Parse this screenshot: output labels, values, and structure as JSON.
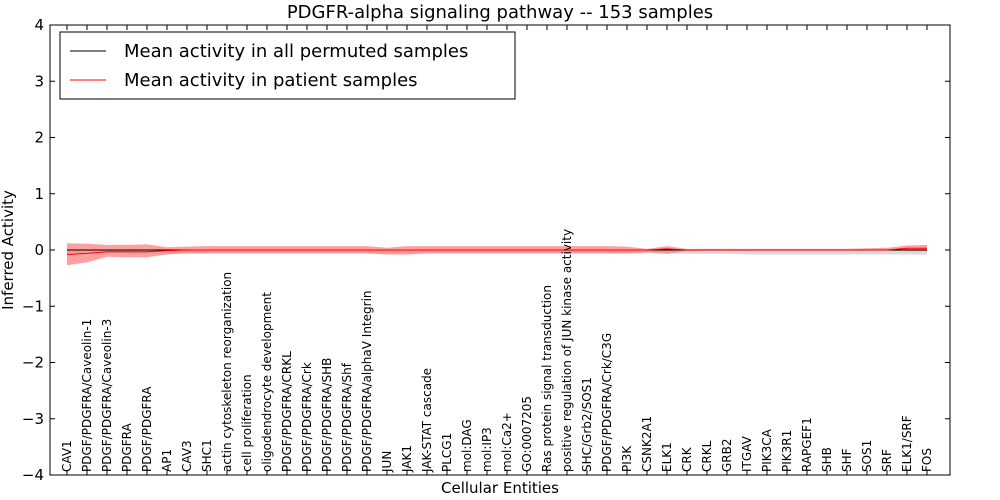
{
  "chart_data": {
    "type": "line",
    "title": "PDGFR-alpha signaling pathway -- 153 samples",
    "xlabel": "Cellular Entities",
    "ylabel": "Inferred Activity",
    "ylim": [
      -4,
      4
    ],
    "yticks": [
      -4,
      -3,
      -2,
      -1,
      0,
      1,
      2,
      3,
      4
    ],
    "ytick_labels": [
      "−4",
      "−3",
      "−2",
      "−1",
      "0",
      "1",
      "2",
      "3",
      "4"
    ],
    "grid": false,
    "legend_position": "top-left",
    "categories": [
      "CAV1",
      "PDGF/PDGFRA/Caveolin-1",
      "PDGF/PDGFRA/Caveolin-3",
      "PDGFRA",
      "PDGF/PDGFRA",
      "AP1",
      "CAV3",
      "SHC1",
      "actin cytoskeleton reorganization",
      "cell proliferation",
      "oligodendrocyte development",
      "PDGF/PDGFRA/CRKL",
      "PDGF/PDGFRA/Crk",
      "PDGF/PDGFRA/SHB",
      "PDGF/PDGFRA/Shf",
      "PDGF/PDGFRA/alphaV Integrin",
      "JUN",
      "JAK1",
      "JAK-STAT cascade",
      "PLCG1",
      "mol:DAG",
      "mol:IP3",
      "mol:Ca2+",
      "GO:0007205",
      "Ras protein signal transduction",
      "positive regulation of JUN kinase activity",
      "SHC/Grb2/SOS1",
      "PDGF/PDGFRA/Crk/C3G",
      "PI3K",
      "CSNK2A1",
      "ELK1",
      "CRK",
      "CRKL",
      "GRB2",
      "ITGAV",
      "PIK3CA",
      "PIK3R1",
      "RAPGEF1",
      "SHB",
      "SHF",
      "SOS1",
      "SRF",
      "ELK1/SRF",
      "FOS"
    ],
    "series": [
      {
        "name": "Mean activity in all permuted samples",
        "color": "#000000",
        "values": [
          0,
          0,
          0,
          0,
          0,
          0,
          0,
          0,
          0,
          0,
          0,
          0,
          0,
          0,
          0,
          0,
          0,
          0,
          0,
          0,
          0,
          0,
          0,
          0,
          0,
          0,
          0,
          0,
          0,
          0,
          0,
          0,
          0,
          0,
          0,
          0,
          0,
          0,
          0,
          0,
          0,
          0,
          0,
          0
        ],
        "band_upper": [
          0,
          0,
          0,
          0,
          0,
          0,
          0,
          0,
          0,
          0,
          0,
          0,
          0,
          0,
          0,
          0,
          0,
          0,
          0,
          0,
          0,
          0,
          0,
          0,
          0,
          0,
          0,
          0,
          0,
          0,
          0,
          0,
          0.02,
          0.02,
          0.02,
          0.02,
          0.02,
          0.02,
          0.02,
          0.02,
          0.02,
          0.02,
          0.02,
          0.02
        ],
        "band_lower": [
          -0.06,
          -0.06,
          -0.06,
          -0.06,
          -0.07,
          -0.07,
          -0.06,
          -0.06,
          -0.06,
          -0.06,
          -0.06,
          -0.06,
          -0.06,
          -0.06,
          -0.06,
          -0.06,
          -0.06,
          -0.06,
          -0.06,
          -0.06,
          -0.06,
          -0.06,
          -0.06,
          -0.06,
          -0.06,
          -0.06,
          -0.06,
          -0.06,
          -0.06,
          -0.06,
          -0.06,
          -0.07,
          -0.07,
          -0.07,
          -0.08,
          -0.08,
          -0.08,
          -0.08,
          -0.08,
          -0.08,
          -0.08,
          -0.08,
          -0.08,
          -0.08
        ],
        "band_color": "#cccccc"
      },
      {
        "name": "Mean activity in patient samples",
        "color": "#ff0000",
        "values": [
          -0.08,
          -0.06,
          -0.03,
          -0.03,
          -0.03,
          -0.01,
          0,
          0,
          0,
          0,
          0,
          0,
          0,
          0,
          0,
          0,
          0,
          0,
          0,
          0,
          0,
          0,
          0,
          0,
          0,
          0,
          0,
          0,
          0,
          0,
          0.02,
          0,
          0,
          0,
          0,
          0,
          0,
          0,
          0,
          0,
          0,
          0,
          0.03,
          0.03
        ],
        "band_upper": [
          0.12,
          0.11,
          0.09,
          0.09,
          0.1,
          0.05,
          0.06,
          0.07,
          0.07,
          0.07,
          0.07,
          0.07,
          0.07,
          0.07,
          0.07,
          0.07,
          0.04,
          0.07,
          0.07,
          0.07,
          0.07,
          0.07,
          0.07,
          0.07,
          0.07,
          0.07,
          0.07,
          0.07,
          0.06,
          0.02,
          0.07,
          0.02,
          0.02,
          0.02,
          0.02,
          0.02,
          0.02,
          0.02,
          0.02,
          0.02,
          0.03,
          0.04,
          0.08,
          0.09
        ],
        "band_lower": [
          -0.27,
          -0.22,
          -0.12,
          -0.13,
          -0.13,
          -0.08,
          -0.06,
          -0.06,
          -0.06,
          -0.06,
          -0.06,
          -0.06,
          -0.06,
          -0.06,
          -0.06,
          -0.06,
          -0.08,
          -0.08,
          -0.06,
          -0.06,
          -0.06,
          -0.06,
          -0.06,
          -0.06,
          -0.06,
          -0.06,
          -0.06,
          -0.06,
          -0.06,
          -0.04,
          -0.07,
          -0.02,
          -0.01,
          -0.01,
          -0.01,
          -0.01,
          -0.01,
          -0.01,
          -0.01,
          -0.01,
          -0.01,
          -0.01,
          -0.02,
          -0.02
        ],
        "band_color": "#ff8080"
      }
    ]
  }
}
